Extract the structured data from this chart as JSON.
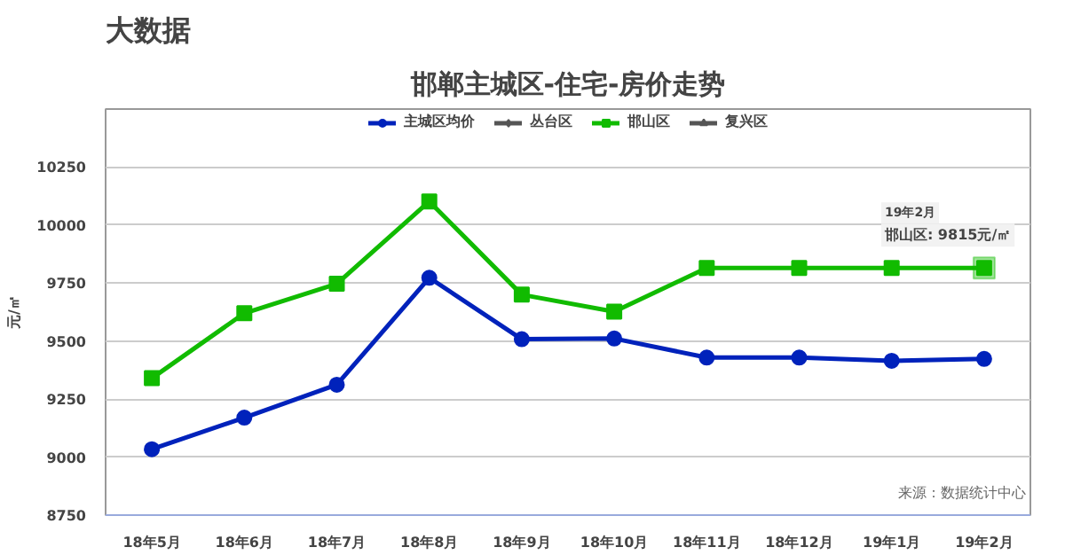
{
  "chart_data": {
    "type": "line",
    "title": "大数据",
    "subtitle": "邯郸主城区-住宅-房价走势",
    "ylabel": "元/㎡",
    "categories": [
      "18年5月",
      "18年6月",
      "18年7月",
      "18年8月",
      "18年9月",
      "18年10月",
      "18年11月",
      "18年12月",
      "19年1月",
      "19年2月"
    ],
    "series": [
      {
        "name": "主城区均价",
        "color": "#0022bb",
        "marker": "circle",
        "values": [
          9034,
          9170,
          9312,
          9773,
          9508,
          9511,
          9429,
          9429,
          9415,
          9423
        ]
      },
      {
        "name": "丛台区",
        "color": "#555555",
        "marker": "diamond",
        "values": [
          null,
          null,
          null,
          null,
          null,
          null,
          null,
          null,
          null,
          null
        ]
      },
      {
        "name": "邯山区",
        "color": "#11bb00",
        "marker": "square",
        "values": [
          9340,
          9620,
          9747,
          10102,
          9700,
          9627,
          9815,
          9815,
          9815,
          9815
        ]
      },
      {
        "name": "复兴区",
        "color": "#555555",
        "marker": "triangle",
        "values": [
          null,
          null,
          null,
          null,
          null,
          null,
          null,
          null,
          null,
          null
        ]
      }
    ],
    "ylim": [
      8750,
      10500
    ],
    "yticks": [
      8750,
      9000,
      9250,
      9500,
      9750,
      10000,
      10250
    ],
    "grid": "y",
    "legend": "top",
    "annotations": [
      "19年2月",
      {
        "text": "邯山区: 9815元/㎡",
        "x": "19年2月",
        "y": 9815
      },
      "来源：数据统计中心"
    ]
  }
}
